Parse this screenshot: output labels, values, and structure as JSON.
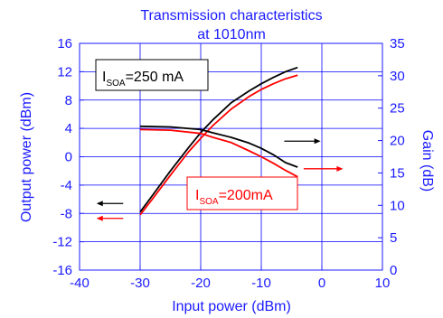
{
  "chart_data": {
    "type": "line",
    "title": "Transmission characteristics",
    "subtitle": "at 1010nm",
    "xlabel": "Input power (dBm)",
    "ylabel_left": "Output power (dBm)",
    "ylabel_right": "Gain (dB)",
    "xlim": [
      -40,
      10
    ],
    "ylim_left": [
      -16,
      16
    ],
    "ylim_right": [
      0,
      35
    ],
    "x_ticks": [
      "-40",
      "-30",
      "-20",
      "-10",
      "0",
      "10"
    ],
    "y_left_ticks": [
      "-16",
      "-12",
      "-8",
      "-4",
      "0",
      "4",
      "8",
      "12",
      "16"
    ],
    "y_right_ticks": [
      "0",
      "5",
      "10",
      "15",
      "20",
      "25",
      "30",
      "35"
    ],
    "grid": true,
    "colors": {
      "axis": "#1a1aff",
      "grid": "#0000ff",
      "series_250": "#000000",
      "series_200": "#ff0000"
    },
    "annotations": [
      {
        "id": "label_250",
        "main": "I",
        "sub": "SOA",
        "rest": "=250 mA",
        "color": "#000000"
      },
      {
        "id": "label_200",
        "main": "I",
        "sub": "SOA",
        "rest": "=200mA",
        "color": "#ff0000"
      }
    ],
    "series": [
      {
        "key": "out250",
        "axis": "left",
        "color": "#000000",
        "x": [
          -30,
          -28,
          -25,
          -22,
          -20,
          -18,
          -15,
          -12,
          -10,
          -8,
          -6,
          -4
        ],
        "y": [
          -7.8,
          -5.5,
          -2.0,
          1.3,
          3.4,
          5.2,
          7.6,
          9.3,
          10.3,
          11.2,
          12.0,
          12.6
        ]
      },
      {
        "key": "out200",
        "axis": "left",
        "color": "#ff0000",
        "x": [
          -30,
          -28,
          -25,
          -22,
          -20,
          -18,
          -15,
          -12,
          -10,
          -8,
          -6,
          -4
        ],
        "y": [
          -8.2,
          -6.0,
          -2.6,
          0.7,
          2.6,
          4.4,
          6.7,
          8.5,
          9.5,
          10.3,
          11.0,
          11.5
        ]
      },
      {
        "key": "gain250",
        "axis": "right",
        "color": "#000000",
        "x": [
          -30,
          -25,
          -20,
          -18,
          -15,
          -12,
          -10,
          -8,
          -6,
          -4
        ],
        "y": [
          22.2,
          22.1,
          21.7,
          21.2,
          20.5,
          19.6,
          18.8,
          17.8,
          16.6,
          15.9
        ]
      },
      {
        "key": "gain200",
        "axis": "right",
        "color": "#ff0000",
        "x": [
          -30,
          -25,
          -20,
          -18,
          -15,
          -12,
          -10,
          -8,
          -6,
          -4
        ],
        "y": [
          21.7,
          21.6,
          21.1,
          20.5,
          19.7,
          18.4,
          17.5,
          16.5,
          15.4,
          14.4
        ]
      }
    ],
    "arrows": [
      {
        "key": "arrow_black_left",
        "color": "#000000",
        "x1": -32.8,
        "x2": -37.2,
        "y_left": -6.6,
        "dir": "left"
      },
      {
        "key": "arrow_red_left",
        "color": "#ff0000",
        "x1": -32.8,
        "x2": -37.2,
        "y_left": -8.7,
        "dir": "left"
      },
      {
        "key": "arrow_black_right",
        "color": "#000000",
        "x1": -6.2,
        "x2": -0.2,
        "y_left": 2.2,
        "dir": "right"
      },
      {
        "key": "arrow_red_right",
        "color": "#ff0000",
        "x1": -3.0,
        "x2": 3.5,
        "y_left": -1.7,
        "dir": "right"
      }
    ]
  }
}
